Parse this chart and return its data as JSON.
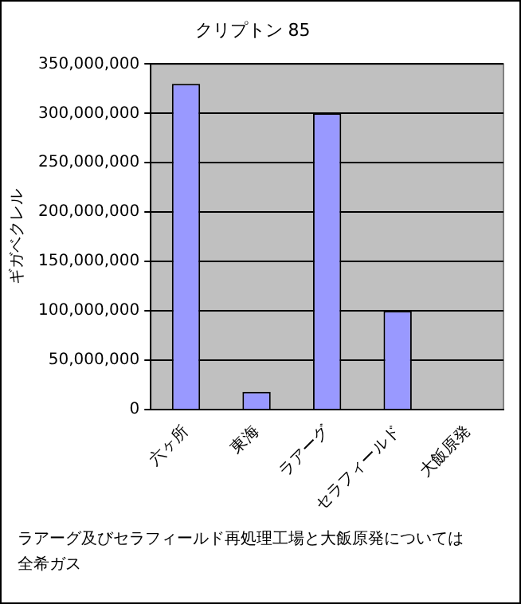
{
  "chart_data": {
    "type": "bar",
    "title": "クリプトン 85",
    "ylabel": "ギガベクレル",
    "categories": [
      "六ヶ所",
      "東海",
      "ラアーグ",
      "セラフィールド",
      "大飯原発"
    ],
    "values": [
      330000000,
      18000000,
      300000000,
      100000000,
      0
    ],
    "color": "#9999ff",
    "ylim": [
      0,
      350000000
    ],
    "yticks": [
      0,
      {
        "value": 50000000,
        "label": "50,000,000"
      },
      {
        "value": 100000000,
        "label": "100,000,000"
      },
      {
        "value": 150000000,
        "label": "150,000,000"
      },
      {
        "value": 200000000,
        "label": "200,000,000"
      },
      {
        "value": 250000000,
        "label": "250,000,000"
      },
      {
        "value": 300000000,
        "label": "300,000,000"
      },
      {
        "value": 350000000,
        "label": "350,000,000"
      }
    ],
    "grid": "y",
    "legend": false,
    "annotations": [
      "ラアーグ及びセラフィールド再処理工場と大飯原発については全希ガス"
    ]
  }
}
